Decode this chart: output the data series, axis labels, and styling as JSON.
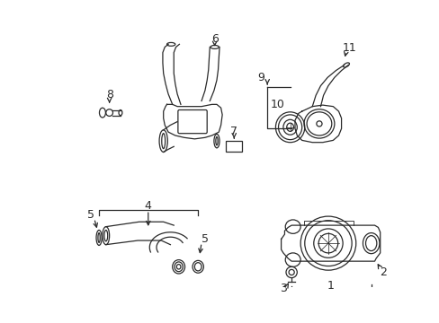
{
  "bg_color": "#ffffff",
  "line_color": "#2a2a2a",
  "lw": 0.9,
  "fig_w": 4.89,
  "fig_h": 3.6,
  "dpi": 100
}
